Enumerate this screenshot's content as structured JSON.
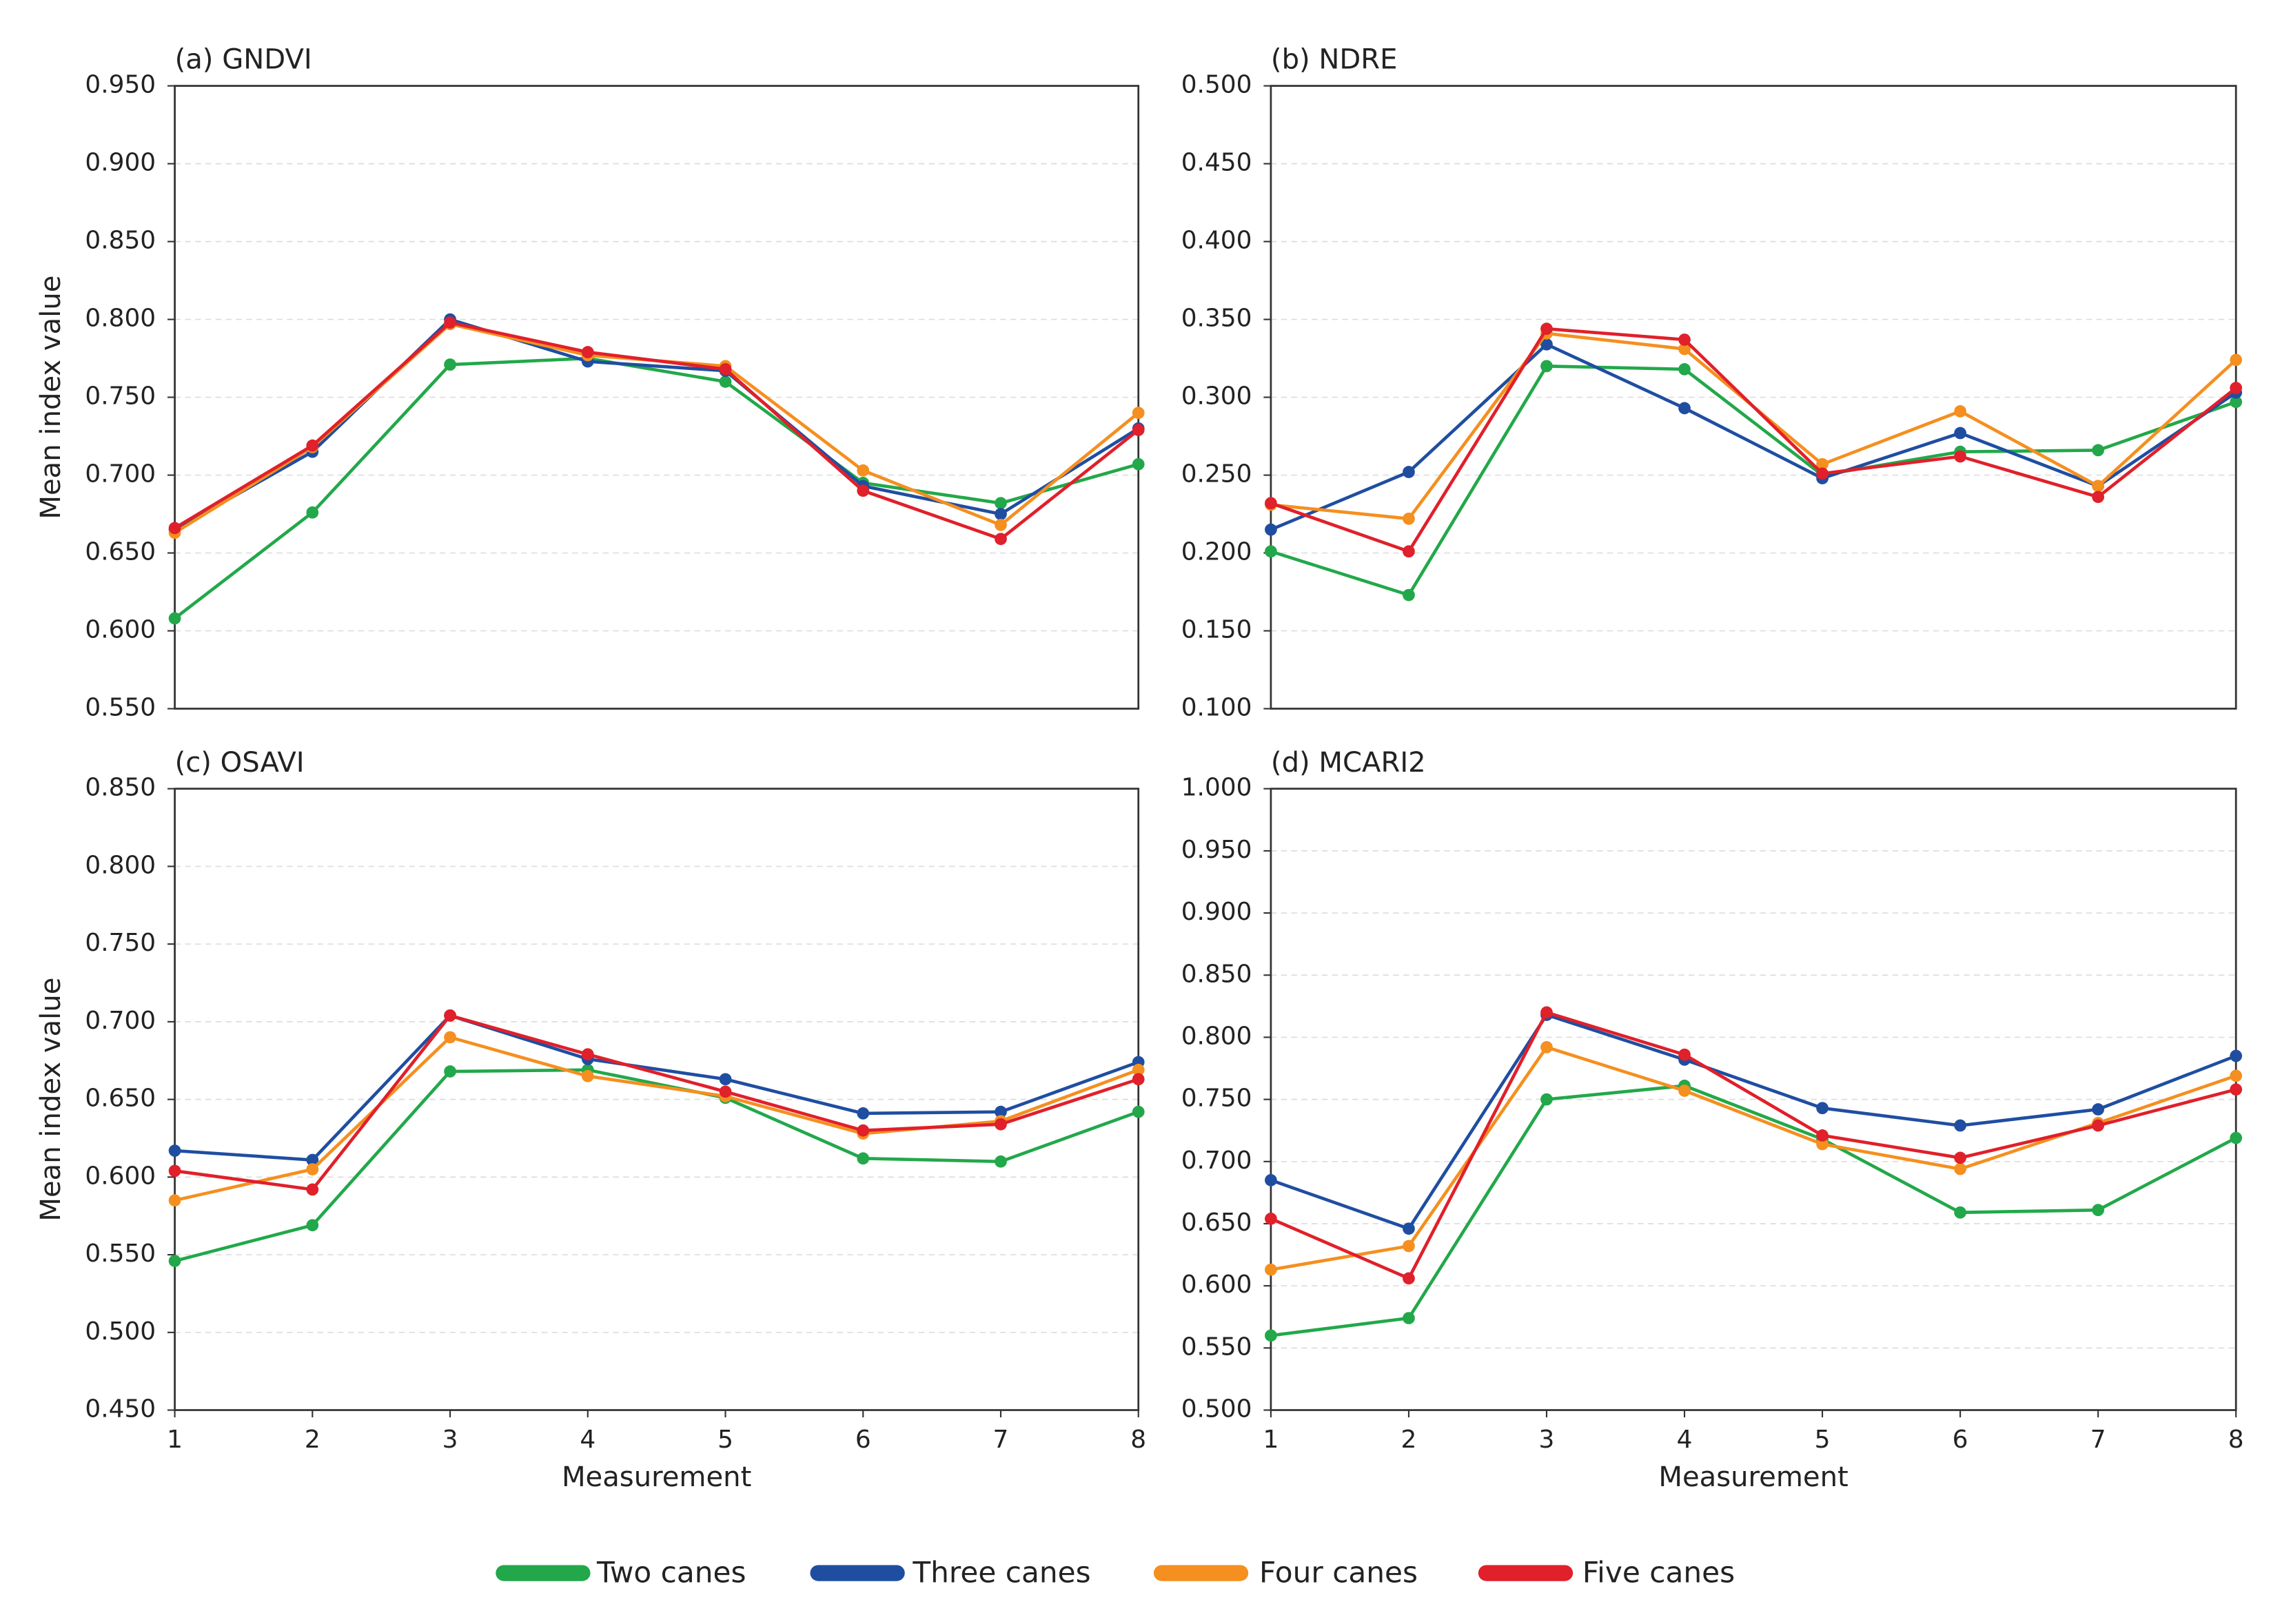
{
  "chart_data": [
    {
      "type": "line",
      "title": "(a) GNDVI",
      "ylabel": "Mean index value",
      "x": [
        1,
        2,
        3,
        4,
        5,
        6,
        7,
        8
      ],
      "xlim": [
        1,
        8
      ],
      "ylim": [
        0.55,
        0.95
      ],
      "yticks": [
        {
          "value": 0.55,
          "label": "0.550"
        },
        {
          "value": 0.6,
          "label": "0.600"
        },
        {
          "value": 0.65,
          "label": "0.650"
        },
        {
          "value": 0.7,
          "label": "0.700"
        },
        {
          "value": 0.75,
          "label": "0.750"
        },
        {
          "value": 0.8,
          "label": "0.800"
        },
        {
          "value": 0.85,
          "label": "0.850"
        },
        {
          "value": 0.9,
          "label": "0.900"
        },
        {
          "value": 0.95,
          "label": "0.950"
        }
      ],
      "grid": true,
      "series": [
        {
          "name": "Two canes",
          "color": "#22a84a",
          "values": [
            0.608,
            0.676,
            0.771,
            0.775,
            0.76,
            0.695,
            0.682,
            0.707
          ]
        },
        {
          "name": "Three canes",
          "color": "#1f4ea1",
          "values": [
            0.665,
            0.715,
            0.8,
            0.773,
            0.767,
            0.693,
            0.675,
            0.73
          ]
        },
        {
          "name": "Four canes",
          "color": "#f58f1f",
          "values": [
            0.663,
            0.718,
            0.797,
            0.777,
            0.77,
            0.703,
            0.668,
            0.74
          ]
        },
        {
          "name": "Five canes",
          "color": "#e0202a",
          "values": [
            0.666,
            0.719,
            0.798,
            0.779,
            0.768,
            0.69,
            0.659,
            0.729
          ]
        }
      ],
      "legend": "bottom"
    },
    {
      "type": "line",
      "title": "(b) NDRE",
      "x": [
        1,
        2,
        3,
        4,
        5,
        6,
        7,
        8
      ],
      "xlim": [
        1,
        8
      ],
      "ylim": [
        0.1,
        0.5
      ],
      "yticks": [
        {
          "value": 0.1,
          "label": "0.100"
        },
        {
          "value": 0.15,
          "label": "0.150"
        },
        {
          "value": 0.2,
          "label": "0.200"
        },
        {
          "value": 0.25,
          "label": "0.250"
        },
        {
          "value": 0.3,
          "label": "0.300"
        },
        {
          "value": 0.35,
          "label": "0.350"
        },
        {
          "value": 0.4,
          "label": "0.400"
        },
        {
          "value": 0.45,
          "label": "0.450"
        },
        {
          "value": 0.5,
          "label": "0.500"
        }
      ],
      "grid": true,
      "series": [
        {
          "color": "#22a84a",
          "values": [
            0.201,
            0.173,
            0.32,
            0.318,
            0.25,
            0.265,
            0.266,
            0.297
          ]
        },
        {
          "color": "#1f4ea1",
          "values": [
            0.215,
            0.252,
            0.334,
            0.293,
            0.248,
            0.277,
            0.243,
            0.303
          ]
        },
        {
          "color": "#f58f1f",
          "values": [
            0.231,
            0.222,
            0.341,
            0.331,
            0.257,
            0.291,
            0.243,
            0.324
          ]
        },
        {
          "color": "#e0202a",
          "values": [
            0.232,
            0.201,
            0.344,
            0.337,
            0.251,
            0.262,
            0.236,
            0.306
          ]
        }
      ]
    },
    {
      "type": "line",
      "title": "(c) OSAVI",
      "ylabel": "Mean index value",
      "xlabel": "Measurement",
      "x": [
        1,
        2,
        3,
        4,
        5,
        6,
        7,
        8
      ],
      "xlim": [
        1,
        8
      ],
      "xticks": [
        1,
        2,
        3,
        4,
        5,
        6,
        7,
        8
      ],
      "ylim": [
        0.45,
        0.85
      ],
      "yticks": [
        {
          "value": 0.45,
          "label": "0.450"
        },
        {
          "value": 0.5,
          "label": "0.500"
        },
        {
          "value": 0.55,
          "label": "0.550"
        },
        {
          "value": 0.6,
          "label": "0.600"
        },
        {
          "value": 0.65,
          "label": "0.650"
        },
        {
          "value": 0.7,
          "label": "0.700"
        },
        {
          "value": 0.75,
          "label": "0.750"
        },
        {
          "value": 0.8,
          "label": "0.800"
        },
        {
          "value": 0.85,
          "label": "0.850"
        }
      ],
      "grid": true,
      "series": [
        {
          "color": "#22a84a",
          "values": [
            0.546,
            0.569,
            0.668,
            0.669,
            0.651,
            0.612,
            0.61,
            0.642
          ]
        },
        {
          "color": "#1f4ea1",
          "values": [
            0.617,
            0.611,
            0.704,
            0.676,
            0.663,
            0.641,
            0.642,
            0.674
          ]
        },
        {
          "color": "#f58f1f",
          "values": [
            0.585,
            0.605,
            0.69,
            0.665,
            0.652,
            0.628,
            0.636,
            0.669
          ]
        },
        {
          "color": "#e0202a",
          "values": [
            0.604,
            0.592,
            0.704,
            0.679,
            0.655,
            0.63,
            0.634,
            0.663
          ]
        }
      ]
    },
    {
      "type": "line",
      "title": "(d) MCARI2",
      "xlabel": "Measurement",
      "x": [
        1,
        2,
        3,
        4,
        5,
        6,
        7,
        8
      ],
      "xlim": [
        1,
        8
      ],
      "xticks": [
        1,
        2,
        3,
        4,
        5,
        6,
        7,
        8
      ],
      "ylim": [
        0.5,
        1.0
      ],
      "yticks": [
        {
          "value": 0.5,
          "label": "0.500"
        },
        {
          "value": 0.55,
          "label": "0.550"
        },
        {
          "value": 0.6,
          "label": "0.600"
        },
        {
          "value": 0.65,
          "label": "0.650"
        },
        {
          "value": 0.7,
          "label": "0.700"
        },
        {
          "value": 0.75,
          "label": "0.750"
        },
        {
          "value": 0.8,
          "label": "0.800"
        },
        {
          "value": 0.85,
          "label": "0.850"
        },
        {
          "value": 0.9,
          "label": "0.900"
        },
        {
          "value": 0.95,
          "label": "0.950"
        },
        {
          "value": 1.0,
          "label": "1.000"
        }
      ],
      "grid": true,
      "series": [
        {
          "color": "#22a84a",
          "values": [
            0.56,
            0.574,
            0.75,
            0.761,
            0.718,
            0.659,
            0.661,
            0.719
          ]
        },
        {
          "color": "#1f4ea1",
          "values": [
            0.685,
            0.646,
            0.818,
            0.782,
            0.743,
            0.729,
            0.742,
            0.785
          ]
        },
        {
          "color": "#f58f1f",
          "values": [
            0.613,
            0.632,
            0.792,
            0.757,
            0.714,
            0.694,
            0.731,
            0.769
          ]
        },
        {
          "color": "#e0202a",
          "values": [
            0.654,
            0.606,
            0.82,
            0.786,
            0.721,
            0.703,
            0.729,
            0.758
          ]
        }
      ]
    }
  ]
}
